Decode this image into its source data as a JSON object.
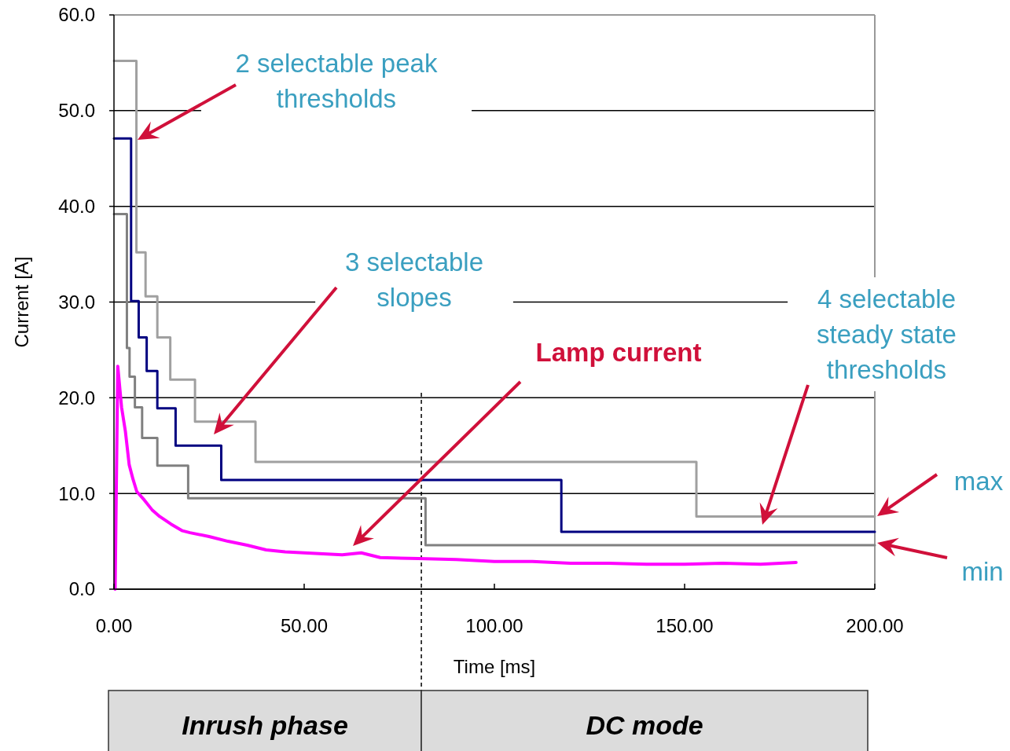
{
  "chart_data": {
    "type": "step",
    "xlabel": "Time [ms]",
    "ylabel": "Current [A]",
    "xlim": [
      0,
      200
    ],
    "ylim": [
      0,
      60
    ],
    "xticks": [
      {
        "value": 0,
        "label": "0.00"
      },
      {
        "value": 50,
        "label": "50.00"
      },
      {
        "value": 100,
        "label": "100.00"
      },
      {
        "value": 150,
        "label": "150.00"
      },
      {
        "value": 200,
        "label": "200.00"
      }
    ],
    "yticks": [
      {
        "value": 0,
        "label": "0.0"
      },
      {
        "value": 10,
        "label": "10.0"
      },
      {
        "value": 20,
        "label": "20.0"
      },
      {
        "value": 30,
        "label": "30.0"
      },
      {
        "value": 40,
        "label": "40.0"
      },
      {
        "value": 50,
        "label": "50.0"
      },
      {
        "value": 60,
        "label": "60.0"
      }
    ],
    "grid": "y",
    "series": [
      {
        "color": "#a0a0a0",
        "x": [
          0,
          5.9,
          8.3,
          11.4,
          14.8,
          21.3,
          37.2,
          153.1,
          200
        ],
        "values": [
          55.2,
          35.2,
          30.6,
          26.3,
          21.9,
          17.5,
          13.3,
          7.6,
          7.6
        ]
      },
      {
        "color": "#808080",
        "x": [
          0,
          3.4,
          4.1,
          5.5,
          7.4,
          11.4,
          19.5,
          81.9,
          200
        ],
        "values": [
          39.2,
          25.2,
          22.2,
          19.0,
          15.8,
          12.9,
          9.5,
          4.6,
          4.6
        ]
      },
      {
        "color": "#000080",
        "x": [
          0,
          4.5,
          6.5,
          8.6,
          11.4,
          16.2,
          28.2,
          117.6,
          200
        ],
        "values": [
          47.1,
          30.1,
          26.3,
          22.8,
          18.9,
          15.0,
          11.4,
          6.0,
          6.0
        ]
      },
      {
        "type": "line",
        "color": "#ff00ff",
        "x": [
          0.3,
          1,
          2,
          3,
          4,
          5,
          6,
          8,
          10,
          12,
          15,
          18,
          20,
          25,
          30,
          35,
          40,
          45,
          50,
          55,
          60,
          65,
          70,
          80,
          90,
          100,
          110,
          120,
          130,
          140,
          150,
          160,
          170,
          179.3
        ],
        "values": [
          0,
          23.3,
          19,
          16.5,
          13,
          11.5,
          10.2,
          9.3,
          8.3,
          7.6,
          6.8,
          6.1,
          5.9,
          5.5,
          5.0,
          4.6,
          4.1,
          3.9,
          3.8,
          3.7,
          3.6,
          3.8,
          3.3,
          3.2,
          3.1,
          2.9,
          2.9,
          2.7,
          2.7,
          2.6,
          2.6,
          2.7,
          2.6,
          2.8
        ]
      }
    ],
    "ref_lines": [
      {
        "axis": "x",
        "value": 80.8,
        "color": "#000000",
        "line_style": "dashed"
      }
    ],
    "annotations": [
      "2 selectable peak\nthresholds",
      "3 selectable\nslopes",
      "Lamp current",
      "4 selectable\nsteady state\nthresholds",
      "max",
      "min",
      "Inrush phase",
      "DC mode"
    ]
  }
}
